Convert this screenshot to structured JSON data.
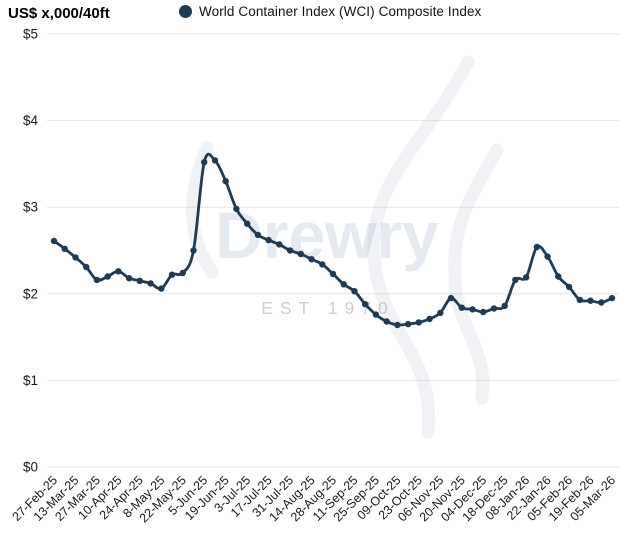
{
  "header": {
    "units_label": "US$ x,000/40ft"
  },
  "legend": {
    "label": "World Container Index (WCI) Composite Index",
    "marker_color": "#203a52"
  },
  "watermark": {
    "brand": "Drewry",
    "tagline": "EST 1970"
  },
  "colors": {
    "line": "#203a52",
    "marker": "#203a52",
    "gridline": "#e4e4e4",
    "tick_text": "#1a1a1a",
    "watermark_brand": "rgba(104,138,172,0.18)",
    "watermark_tagline": "rgba(125,125,125,0.38)",
    "watermark_flame": "rgba(178,192,205,0.20)",
    "background": "#ffffff"
  },
  "chart_data": {
    "type": "line",
    "title": "",
    "ylabel": "US$ x,000/40ft",
    "xlabel": "",
    "ylim": [
      0,
      5
    ],
    "grid": "horizontal",
    "legend_position": "top",
    "line_style": "smooth",
    "markers": true,
    "y_ticks": [
      {
        "label": "$0",
        "value": 0
      },
      {
        "label": "$1",
        "value": 1
      },
      {
        "label": "$2",
        "value": 2
      },
      {
        "label": "$3",
        "value": 3
      },
      {
        "label": "$4",
        "value": 4
      },
      {
        "label": "$5",
        "value": 5
      }
    ],
    "x_tick_every": 2,
    "x_tick_labels": [
      "27-Feb-25",
      "13-Mar-25",
      "27-Mar-25",
      "10-Apr-25",
      "24-Apr-25",
      "8-May-25",
      "22-May-25",
      "5-Jun-25",
      "19-Jun-25",
      "3-Jul-25",
      "17-Jul-25",
      "31-Jul-25",
      "14-Aug-25",
      "28-Aug-25",
      "11-Sep-25",
      "25-Sep-25",
      "09-Oct-25",
      "23-Oct-25",
      "06-Nov-25",
      "20-Nov-25",
      "04-Dec-25",
      "18-Dec-25",
      "08-Jan-26",
      "22-Jan-26",
      "05-Feb-26",
      "19-Feb-26",
      "05-Mar-26"
    ],
    "series": [
      {
        "name": "World Container Index (WCI) Composite Index",
        "color": "#203a52",
        "x": [
          "27-Feb-25",
          "6-Mar-25",
          "13-Mar-25",
          "20-Mar-25",
          "27-Mar-25",
          "3-Apr-25",
          "10-Apr-25",
          "17-Apr-25",
          "24-Apr-25",
          "1-May-25",
          "8-May-25",
          "15-May-25",
          "22-May-25",
          "29-May-25",
          "5-Jun-25",
          "12-Jun-25",
          "19-Jun-25",
          "26-Jun-25",
          "3-Jul-25",
          "10-Jul-25",
          "17-Jul-25",
          "24-Jul-25",
          "31-Jul-25",
          "7-Aug-25",
          "14-Aug-25",
          "21-Aug-25",
          "28-Aug-25",
          "4-Sep-25",
          "11-Sep-25",
          "18-Sep-25",
          "25-Sep-25",
          "02-Oct-25",
          "09-Oct-25",
          "16-Oct-25",
          "23-Oct-25",
          "30-Oct-25",
          "06-Nov-25",
          "13-Nov-25",
          "20-Nov-25",
          "27-Nov-25",
          "04-Dec-25",
          "11-Dec-25",
          "18-Dec-25",
          "25-Dec-25",
          "08-Jan-26",
          "15-Jan-26",
          "22-Jan-26",
          "29-Jan-26",
          "05-Feb-26",
          "12-Feb-26",
          "19-Feb-26",
          "26-Feb-26",
          "05-Mar-26"
        ],
        "values": [
          2.61,
          2.52,
          2.42,
          2.31,
          2.16,
          2.2,
          2.26,
          2.18,
          2.15,
          2.12,
          2.06,
          2.22,
          2.24,
          2.5,
          3.52,
          3.54,
          3.3,
          2.98,
          2.81,
          2.68,
          2.62,
          2.57,
          2.5,
          2.46,
          2.4,
          2.34,
          2.23,
          2.11,
          2.03,
          1.88,
          1.76,
          1.68,
          1.64,
          1.65,
          1.67,
          1.71,
          1.78,
          1.95,
          1.84,
          1.82,
          1.79,
          1.83,
          1.86,
          2.16,
          2.19,
          2.54,
          2.43,
          2.2,
          2.08,
          1.93,
          1.92,
          1.9,
          1.95
        ]
      }
    ]
  }
}
